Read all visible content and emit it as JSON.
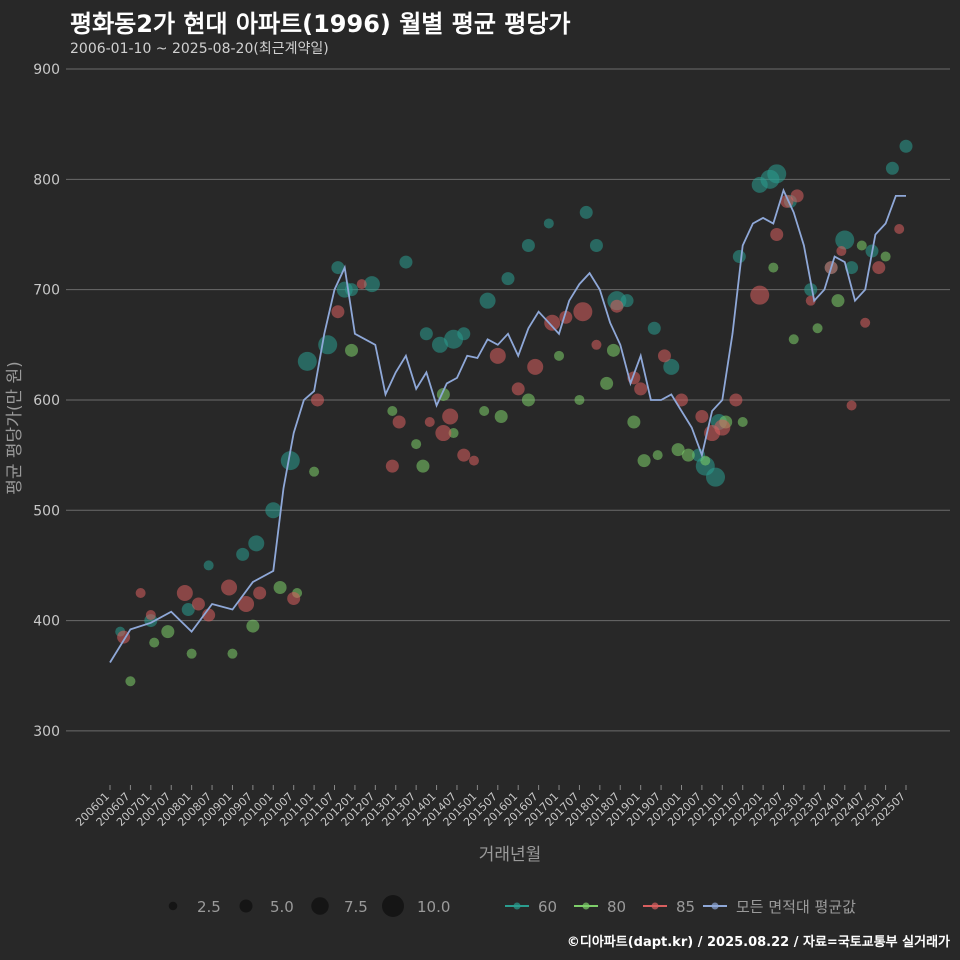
{
  "header": {
    "title": "평화동2가 현대 아파트(1996) 월별 평균 평당가",
    "subtitle": "2006-01-10 ~ 2025-08-20(최근계약일)"
  },
  "footer": {
    "credit": "©디아파트(dapt.kr) / 2025.08.22 / 자료=국토교통부 실거래가"
  },
  "colors": {
    "background": "#282828",
    "grid": "#6b6b6b",
    "s60": "#2a9d8f",
    "s80": "#7ecf6a",
    "s85": "#d95f5f",
    "avg": "#8fa8d8"
  },
  "chart_data": {
    "type": "line",
    "title": "평화동2가 현대 아파트(1996) 월별 평균 평당가",
    "xlabel": "거래년월",
    "ylabel": "평균 평당가(만 원)",
    "ylim": [
      260,
      910
    ],
    "yticks": [
      300,
      400,
      500,
      600,
      700,
      800,
      900
    ],
    "xticks": [
      "200601",
      "200607",
      "200701",
      "200707",
      "200801",
      "200807",
      "200901",
      "200907",
      "201001",
      "201007",
      "201101",
      "201107",
      "201201",
      "201207",
      "201301",
      "201307",
      "201401",
      "201407",
      "201501",
      "201507",
      "201601",
      "201607",
      "201701",
      "201707",
      "201801",
      "201807",
      "201901",
      "201907",
      "202001",
      "202007",
      "202101",
      "202107",
      "202201",
      "202207",
      "202301",
      "202307",
      "202401",
      "202407",
      "202501",
      "202507"
    ],
    "grid": true,
    "legend": {
      "size_title": "",
      "sizes": [
        2.5,
        5.0,
        7.5,
        10.0
      ],
      "size_labels": [
        "2.5",
        "5.0",
        "7.5",
        "10.0"
      ],
      "series_labels": [
        "60",
        "80",
        "85",
        "모든 면적대 평균값"
      ],
      "placement": "bottom"
    },
    "series": [
      {
        "name": "모든 면적대 평균값",
        "kind": "line",
        "color": "#8fa8d8",
        "x": [
          "200601",
          "200607",
          "200701",
          "200707",
          "200801",
          "200807",
          "200901",
          "200907",
          "201001",
          "201004",
          "201007",
          "201010",
          "201101",
          "201104",
          "201107",
          "201110",
          "201201",
          "201204",
          "201207",
          "201210",
          "201301",
          "201304",
          "201307",
          "201310",
          "201401",
          "201404",
          "201407",
          "201410",
          "201501",
          "201504",
          "201507",
          "201510",
          "201601",
          "201604",
          "201607",
          "201610",
          "201701",
          "201704",
          "201707",
          "201710",
          "201801",
          "201804",
          "201807",
          "201810",
          "201901",
          "201904",
          "201907",
          "201910",
          "202001",
          "202004",
          "202007",
          "202010",
          "202101",
          "202104",
          "202107",
          "202110",
          "202201",
          "202204",
          "202207",
          "202210",
          "202301",
          "202304",
          "202307",
          "202310",
          "202401",
          "202404",
          "202407",
          "202410",
          "202501",
          "202504",
          "202507"
        ],
        "values": [
          362,
          392,
          398,
          408,
          390,
          415,
          410,
          435,
          445,
          520,
          570,
          600,
          608,
          660,
          700,
          720,
          660,
          655,
          650,
          605,
          625,
          640,
          610,
          625,
          595,
          615,
          620,
          640,
          638,
          655,
          650,
          660,
          640,
          665,
          680,
          670,
          660,
          690,
          705,
          715,
          700,
          670,
          650,
          615,
          640,
          600,
          600,
          605,
          590,
          575,
          550,
          590,
          600,
          660,
          740,
          760,
          765,
          760,
          790,
          770,
          740,
          690,
          700,
          730,
          725,
          690,
          700,
          750,
          760,
          785,
          785
        ]
      },
      {
        "name": "60",
        "kind": "scatter",
        "color": "#2a9d8f",
        "x": [
          "200604",
          "200701",
          "200712",
          "200806",
          "200904",
          "200908",
          "201001",
          "201006",
          "201011",
          "201105",
          "201108",
          "201110",
          "201112",
          "201206",
          "201304",
          "201310",
          "201402",
          "201406",
          "201409",
          "201504",
          "201510",
          "201604",
          "201610",
          "201709",
          "201712",
          "201806",
          "201809",
          "201905",
          "201910",
          "202006",
          "202008",
          "202011",
          "202012",
          "202106",
          "202112",
          "202203",
          "202205",
          "202209",
          "202303",
          "202309",
          "202401",
          "202403",
          "202409",
          "202503",
          "202507"
        ],
        "values": [
          390,
          400,
          410,
          450,
          460,
          470,
          500,
          545,
          635,
          650,
          720,
          700,
          700,
          705,
          725,
          660,
          650,
          655,
          660,
          690,
          710,
          740,
          760,
          770,
          740,
          690,
          690,
          665,
          630,
          550,
          540,
          530,
          580,
          730,
          795,
          800,
          805,
          780,
          700,
          720,
          745,
          720,
          735,
          810,
          830
        ],
        "sizes": [
          2,
          3,
          3,
          2,
          3,
          4,
          4,
          5,
          5,
          5,
          3,
          4,
          3,
          4,
          3,
          3,
          4,
          5,
          3,
          4,
          3,
          3,
          2,
          3,
          3,
          5,
          3,
          3,
          4,
          3,
          5,
          5,
          4,
          3,
          4,
          5,
          5,
          3,
          3,
          3,
          5,
          3,
          3,
          3,
          3
        ]
      },
      {
        "name": "80",
        "kind": "scatter",
        "color": "#7ecf6a",
        "x": [
          "200607",
          "200702",
          "200706",
          "200801",
          "200901",
          "200907",
          "201003",
          "201008",
          "201101",
          "201112",
          "201212",
          "201307",
          "201309",
          "201403",
          "201406",
          "201503",
          "201508",
          "201604",
          "201701",
          "201707",
          "201803",
          "201805",
          "201811",
          "201902",
          "201906",
          "201912",
          "202003",
          "202008",
          "202102",
          "202107",
          "202204",
          "202210",
          "202305",
          "202311",
          "202406",
          "202501"
        ],
        "values": [
          345,
          380,
          390,
          370,
          370,
          395,
          430,
          425,
          535,
          645,
          590,
          560,
          540,
          605,
          570,
          590,
          585,
          600,
          640,
          600,
          615,
          645,
          580,
          545,
          550,
          555,
          550,
          545,
          580,
          580,
          720,
          655,
          665,
          690,
          740,
          730
        ],
        "sizes": [
          2,
          2,
          3,
          2,
          2,
          3,
          3,
          2,
          2,
          3,
          2,
          2,
          3,
          3,
          2,
          2,
          3,
          3,
          2,
          2,
          3,
          3,
          3,
          3,
          2,
          3,
          3,
          2,
          3,
          2,
          2,
          2,
          2,
          3,
          2,
          2
        ]
      },
      {
        "name": "85",
        "kind": "scatter",
        "color": "#d95f5f",
        "x": [
          "200605",
          "200610",
          "200701",
          "200711",
          "200803",
          "200806",
          "200812",
          "200905",
          "200909",
          "201007",
          "201102",
          "201108",
          "201203",
          "201212",
          "201302",
          "201311",
          "201403",
          "201405",
          "201409",
          "201412",
          "201507",
          "201601",
          "201606",
          "201611",
          "201703",
          "201708",
          "201712",
          "201806",
          "201811",
          "201901",
          "201908",
          "202001",
          "202007",
          "202010",
          "202101",
          "202105",
          "202112",
          "202205",
          "202208",
          "202211",
          "202303",
          "202309",
          "202312",
          "202403",
          "202407",
          "202411",
          "202505"
        ],
        "values": [
          385,
          425,
          405,
          425,
          415,
          405,
          430,
          415,
          425,
          420,
          600,
          680,
          705,
          540,
          580,
          580,
          570,
          585,
          550,
          545,
          640,
          610,
          630,
          670,
          675,
          680,
          650,
          685,
          620,
          610,
          640,
          600,
          585,
          570,
          575,
          600,
          695,
          750,
          780,
          785,
          690,
          720,
          735,
          595,
          670,
          720,
          755
        ],
        "sizes": [
          3,
          2,
          2,
          4,
          3,
          3,
          4,
          4,
          3,
          3,
          3,
          3,
          2,
          3,
          3,
          2,
          4,
          4,
          3,
          2,
          4,
          3,
          4,
          4,
          3,
          5,
          2,
          3,
          3,
          3,
          3,
          3,
          3,
          4,
          4,
          3,
          5,
          3,
          3,
          3,
          2,
          3,
          2,
          2,
          2,
          3,
          2
        ]
      }
    ]
  }
}
